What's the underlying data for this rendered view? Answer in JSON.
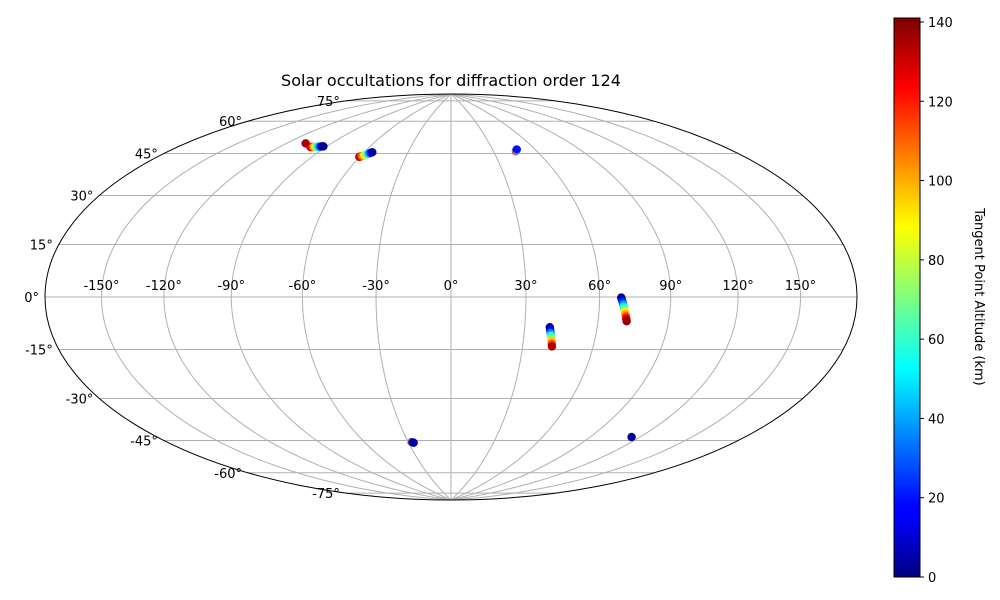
{
  "chart_data": {
    "type": "scatter",
    "projection": "hammer",
    "title": "Solar occultations for diffraction order 124",
    "grid": true,
    "lon_ticks": [
      "-150°",
      "-120°",
      "-90°",
      "-60°",
      "-30°",
      "0°",
      "30°",
      "60°",
      "90°",
      "120°",
      "150°"
    ],
    "lon_tick_values": [
      -150,
      -120,
      -90,
      -60,
      -30,
      0,
      30,
      60,
      90,
      120,
      150
    ],
    "lat_ticks": [
      "75°",
      "60°",
      "45°",
      "30°",
      "15°",
      "0°",
      "-15°",
      "-30°",
      "-45°",
      "-60°",
      "-75°"
    ],
    "lat_tick_values": [
      75,
      60,
      45,
      30,
      15,
      0,
      -15,
      -30,
      -45,
      -60,
      -75
    ],
    "colorbar": {
      "label": "Tangent Point Altitude (km)",
      "range": [
        0,
        141
      ],
      "ticks": [
        "0",
        "20",
        "40",
        "60",
        "80",
        "100",
        "120",
        "140"
      ],
      "tick_values": [
        0,
        20,
        40,
        60,
        80,
        100,
        120,
        140
      ],
      "colormap": "jet"
    },
    "series": [
      {
        "lon": [
          -107.5
        ],
        "lat": [
          59.6
        ],
        "alt": [
          135
        ]
      },
      {
        "lon": [
          -100.2,
          -99.4,
          -98.6,
          -97.8,
          -97.0,
          -96.2,
          -95.4,
          -94.6,
          -93.8,
          -93.0,
          -92.4
        ],
        "lat": [
          58.6,
          58.7,
          58.8,
          58.9,
          59.0,
          59.1,
          59.2,
          59.3,
          59.4,
          59.5,
          59.6
        ],
        "alt": [
          135,
          125,
          110,
          95,
          80,
          65,
          50,
          35,
          20,
          8,
          2
        ]
      },
      {
        "lon": [
          -60.2,
          -59.5,
          -58.8,
          -58.0,
          -57.3,
          -56.6,
          -55.9,
          -55.2,
          -54.5
        ],
        "lat": [
          56.9,
          57.2,
          57.5,
          57.8,
          58.1,
          58.4,
          58.7,
          59.0,
          59.3
        ],
        "alt": [
          135,
          120,
          105,
          90,
          75,
          60,
          40,
          20,
          5
        ]
      },
      {
        "lon": [
          45.8,
          46.5,
          47.2
        ],
        "lat": [
          60.2,
          60.5,
          60.9
        ],
        "alt": [
          135,
          70,
          20
        ]
      },
      {
        "lon": [
          69.0,
          69.3,
          69.6,
          69.9,
          70.2,
          70.5,
          70.8,
          71.1,
          71.4,
          71.7,
          72.0
        ],
        "lat": [
          -0.2,
          -1.1,
          -2.0,
          -2.9,
          -3.8,
          -4.7,
          -5.6,
          -6.5,
          -7.4,
          -8.3,
          -9.2
        ],
        "alt": [
          2,
          10,
          25,
          40,
          55,
          70,
          85,
          100,
          115,
          128,
          138
        ]
      },
      {
        "lon": [
          40.3,
          40.6,
          40.9,
          41.2,
          41.5,
          41.8,
          42.1,
          42.4
        ],
        "lat": [
          -11.9,
          -13.0,
          -14.1,
          -15.2,
          -16.3,
          -17.4,
          -18.5,
          -19.5
        ],
        "alt": [
          2,
          15,
          35,
          55,
          75,
          95,
          115,
          135
        ]
      },
      {
        "lon": [
          -28.0,
          -27.2,
          -26.4
        ],
        "lat": [
          -60.3,
          -60.5,
          -60.7
        ],
        "alt": [
          100,
          20,
          5
        ]
      },
      {
        "lon": [
          115.0
        ],
        "lat": [
          -52.6
        ],
        "alt": [
          3
        ]
      }
    ]
  }
}
